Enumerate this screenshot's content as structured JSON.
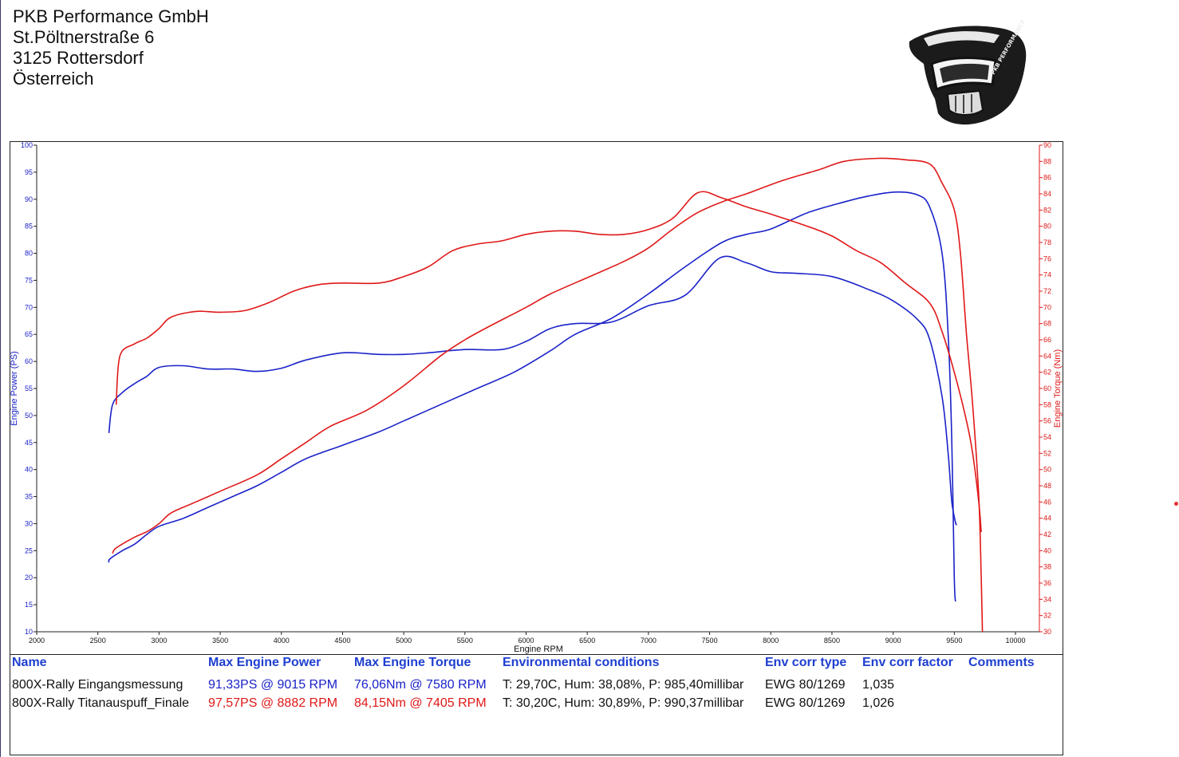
{
  "header": {
    "company_lines": [
      "PKB Performance GmbH",
      "St.Pöltnerstraße 6",
      "3125 Rottersdorf",
      "Österreich"
    ],
    "logo_icon": "helmet-logo-icon",
    "logo_text": "PKB PERFORMANCE"
  },
  "colors": {
    "baseline": "#1a22c8",
    "final": "#e01818",
    "frame": "#222222",
    "header_blue": "#1f3fd0"
  },
  "chart_data": {
    "type": "line",
    "xlabel": "Engine RPM",
    "ylabel_left": "Engine Power (PS)",
    "ylabel_right": "Engine Torque (Nm)",
    "xlim": [
      2000,
      10000
    ],
    "ylim_left": [
      10,
      100
    ],
    "ylim_right": [
      30,
      90
    ],
    "x_ticks": [
      2000,
      2500,
      3000,
      3500,
      4000,
      4500,
      5000,
      5500,
      6000,
      6500,
      7000,
      7500,
      8000,
      8500,
      9000,
      9500,
      10000
    ],
    "y_left_ticks": [
      10,
      15,
      20,
      25,
      30,
      35,
      40,
      45,
      50,
      55,
      60,
      65,
      70,
      75,
      80,
      85,
      90,
      95,
      100
    ],
    "y_right_ticks": [
      30,
      32,
      34,
      36,
      38,
      40,
      42,
      44,
      46,
      48,
      50,
      52,
      54,
      56,
      58,
      60,
      62,
      64,
      66,
      68,
      70,
      72,
      74,
      76,
      78,
      80,
      82,
      84,
      86,
      88,
      90
    ],
    "grid": false,
    "series": [
      {
        "name": "800X-Rally Eingangsmessung",
        "color": "#1a22c8",
        "power_ps": [
          [
            2590,
            22.8
          ],
          [
            2600,
            23.5
          ],
          [
            2700,
            25
          ],
          [
            2800,
            26.2
          ],
          [
            2900,
            28
          ],
          [
            3000,
            29.5
          ],
          [
            3200,
            31
          ],
          [
            3400,
            33
          ],
          [
            3600,
            35
          ],
          [
            3800,
            37
          ],
          [
            4000,
            39.5
          ],
          [
            4200,
            42
          ],
          [
            4500,
            44.5
          ],
          [
            4800,
            47
          ],
          [
            5000,
            49
          ],
          [
            5300,
            52
          ],
          [
            5600,
            55
          ],
          [
            5900,
            58
          ],
          [
            6200,
            62
          ],
          [
            6400,
            65
          ],
          [
            6700,
            68
          ],
          [
            7000,
            72.5
          ],
          [
            7300,
            77.5
          ],
          [
            7600,
            82
          ],
          [
            7800,
            83.5
          ],
          [
            8000,
            84.5
          ],
          [
            8300,
            87.5
          ],
          [
            8600,
            89.5
          ],
          [
            8800,
            90.6
          ],
          [
            9015,
            91.33
          ],
          [
            9200,
            90.8
          ],
          [
            9300,
            88.5
          ],
          [
            9400,
            80
          ],
          [
            9450,
            65
          ],
          [
            9480,
            45
          ],
          [
            9500,
            20
          ],
          [
            9510,
            15.6
          ]
        ],
        "torque_nm": [
          [
            2590,
            54.5
          ],
          [
            2620,
            58
          ],
          [
            2700,
            59.5
          ],
          [
            2800,
            60.6
          ],
          [
            2900,
            61.5
          ],
          [
            3000,
            62.6
          ],
          [
            3200,
            62.8
          ],
          [
            3400,
            62.4
          ],
          [
            3600,
            62.4
          ],
          [
            3800,
            62.1
          ],
          [
            4000,
            62.5
          ],
          [
            4200,
            63.5
          ],
          [
            4500,
            64.4
          ],
          [
            4800,
            64.2
          ],
          [
            5000,
            64.2
          ],
          [
            5200,
            64.4
          ],
          [
            5500,
            64.8
          ],
          [
            5800,
            64.8
          ],
          [
            6000,
            65.8
          ],
          [
            6200,
            67.4
          ],
          [
            6400,
            68
          ],
          [
            6700,
            68.2
          ],
          [
            7000,
            70.2
          ],
          [
            7300,
            71.5
          ],
          [
            7580,
            76.06
          ],
          [
            7800,
            75.5
          ],
          [
            8000,
            74.4
          ],
          [
            8200,
            74.2
          ],
          [
            8500,
            73.8
          ],
          [
            8800,
            72.2
          ],
          [
            9000,
            70.8
          ],
          [
            9200,
            68.5
          ],
          [
            9300,
            66
          ],
          [
            9400,
            59
          ],
          [
            9450,
            52
          ],
          [
            9480,
            46
          ],
          [
            9510,
            43.5
          ],
          [
            9520,
            43.2
          ]
        ]
      },
      {
        "name": "800X-Rally Titanauspuff_Finale",
        "color": "#e01818",
        "power_ps": [
          [
            2620,
            24.5
          ],
          [
            2650,
            25.5
          ],
          [
            2800,
            27.5
          ],
          [
            2900,
            28.5
          ],
          [
            3000,
            30
          ],
          [
            3100,
            32
          ],
          [
            3300,
            34
          ],
          [
            3500,
            36
          ],
          [
            3800,
            39
          ],
          [
            4000,
            42
          ],
          [
            4200,
            45
          ],
          [
            4400,
            48
          ],
          [
            4700,
            51
          ],
          [
            5000,
            55.5
          ],
          [
            5300,
            61
          ],
          [
            5500,
            64
          ],
          [
            5700,
            66.5
          ],
          [
            6000,
            70
          ],
          [
            6200,
            72.5
          ],
          [
            6500,
            75.5
          ],
          [
            6800,
            78.5
          ],
          [
            7000,
            81
          ],
          [
            7200,
            84.5
          ],
          [
            7400,
            87.5
          ],
          [
            7600,
            89.5
          ],
          [
            7800,
            91
          ],
          [
            8100,
            93.5
          ],
          [
            8400,
            95.5
          ],
          [
            8600,
            97
          ],
          [
            8882,
            97.57
          ],
          [
            9100,
            97.3
          ],
          [
            9300,
            96.5
          ],
          [
            9400,
            93
          ],
          [
            9500,
            88
          ],
          [
            9550,
            80
          ],
          [
            9600,
            65
          ],
          [
            9650,
            52
          ],
          [
            9700,
            35
          ],
          [
            9720,
            20
          ],
          [
            9730,
            10
          ]
        ],
        "torque_nm": [
          [
            2650,
            58
          ],
          [
            2680,
            64
          ],
          [
            2800,
            65.5
          ],
          [
            2900,
            66.2
          ],
          [
            3000,
            67.4
          ],
          [
            3100,
            68.8
          ],
          [
            3300,
            69.5
          ],
          [
            3500,
            69.4
          ],
          [
            3700,
            69.6
          ],
          [
            3900,
            70.6
          ],
          [
            4100,
            72
          ],
          [
            4300,
            72.8
          ],
          [
            4500,
            73
          ],
          [
            4800,
            73
          ],
          [
            5000,
            73.8
          ],
          [
            5200,
            75
          ],
          [
            5400,
            77
          ],
          [
            5600,
            77.8
          ],
          [
            5800,
            78.2
          ],
          [
            6000,
            79
          ],
          [
            6200,
            79.4
          ],
          [
            6400,
            79.4
          ],
          [
            6600,
            79
          ],
          [
            6800,
            79
          ],
          [
            7000,
            79.6
          ],
          [
            7200,
            81
          ],
          [
            7405,
            84.15
          ],
          [
            7600,
            83.5
          ],
          [
            7800,
            82.4
          ],
          [
            8000,
            81.5
          ],
          [
            8300,
            80
          ],
          [
            8500,
            78.8
          ],
          [
            8700,
            77
          ],
          [
            8900,
            75.5
          ],
          [
            9100,
            73
          ],
          [
            9300,
            70.5
          ],
          [
            9400,
            67
          ],
          [
            9500,
            62
          ],
          [
            9600,
            56
          ],
          [
            9650,
            52
          ],
          [
            9700,
            46
          ],
          [
            9720,
            42.3
          ]
        ]
      }
    ]
  },
  "legend": {
    "headers": [
      "Name",
      "Max Engine Power",
      "Max Engine Torque",
      "Environmental conditions",
      "Env corr type",
      "Env corr factor",
      "Comments"
    ],
    "rows": [
      {
        "name": "800X-Rally Eingangsmessung",
        "power": "91,33PS @ 9015 RPM",
        "torque": "76,06Nm @ 7580 RPM",
        "env": "T: 29,70C, Hum: 38,08%, P: 985,40millibar",
        "corr_type": "EWG 80/1269",
        "corr_factor": "1,035",
        "comments": ""
      },
      {
        "name": "800X-Rally Titanauspuff_Finale",
        "power": "97,57PS @ 8882 RPM",
        "torque": "84,15Nm @ 7405 RPM",
        "env": "T: 30,20C, Hum: 30,89%, P: 990,37millibar",
        "corr_type": "EWG 80/1269",
        "corr_factor": "1,026",
        "comments": ""
      }
    ]
  }
}
